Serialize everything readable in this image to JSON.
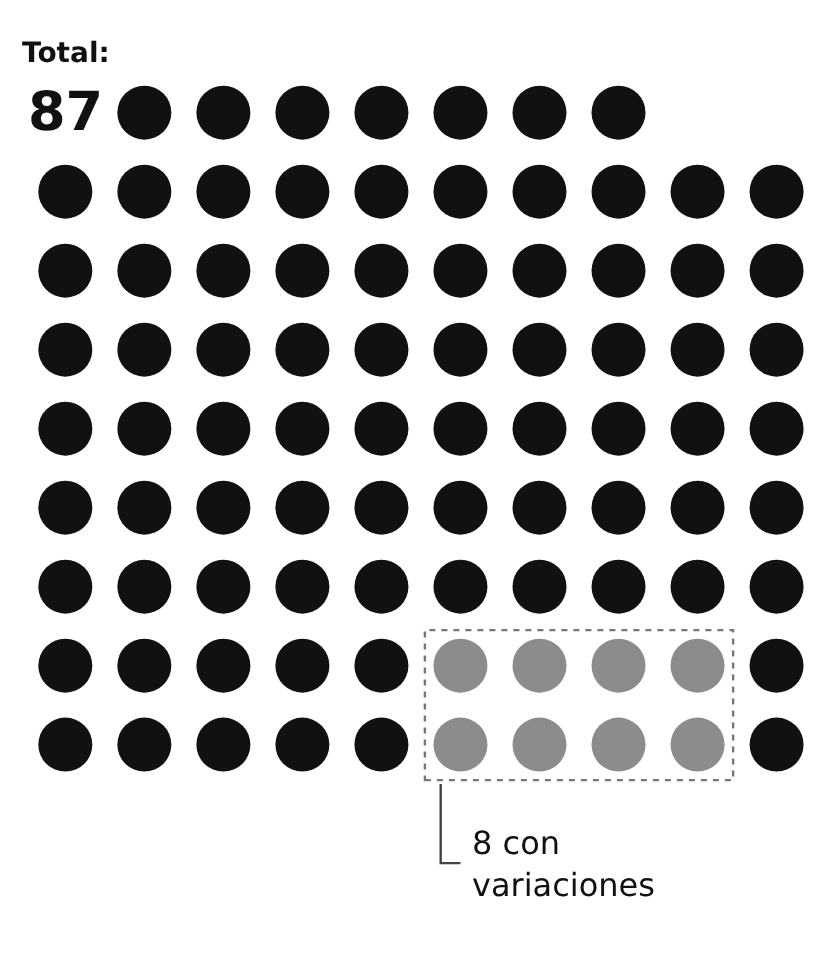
{
  "chart_data": {
    "type": "other",
    "title": "Total:",
    "values": [
      87,
      8
    ],
    "value_labels": [
      "87",
      "8 con variaciones"
    ],
    "colors": [
      "#111111",
      "#8c8c8c"
    ]
  }
}
